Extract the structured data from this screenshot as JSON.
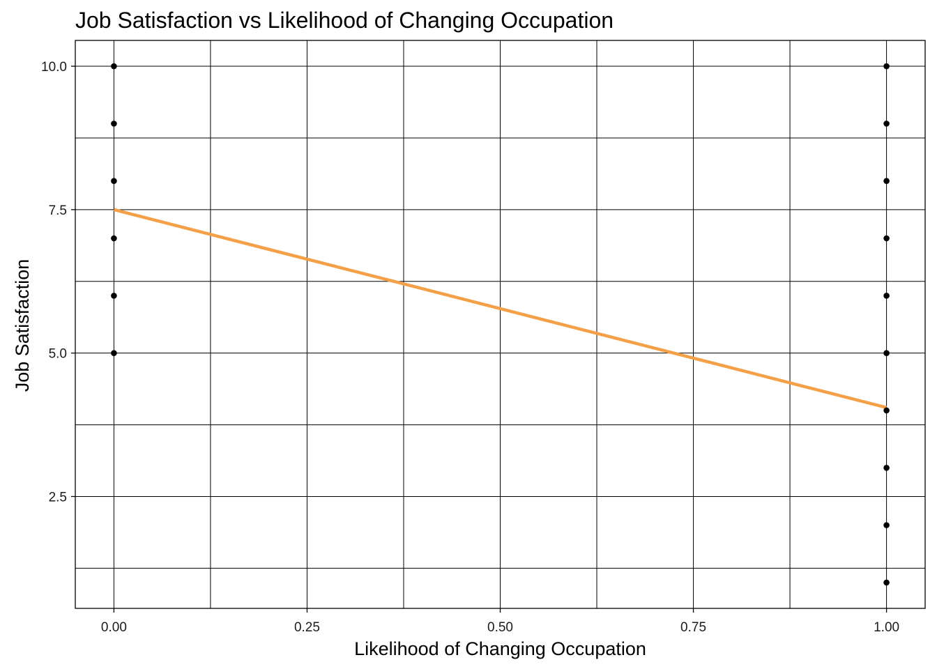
{
  "chart_data": {
    "type": "scatter",
    "title": "Job Satisfaction vs Likelihood of Changing Occupation",
    "xlabel": "Likelihood of Changing Occupation",
    "ylabel": "Job Satisfaction",
    "xlim": [
      -0.05,
      1.05
    ],
    "ylim": [
      0.55,
      10.45
    ],
    "x_ticks": [
      0,
      0.25,
      0.5,
      0.75,
      1
    ],
    "x_tick_labels": [
      "0.00",
      "0.25",
      "0.50",
      "0.75",
      "1.00"
    ],
    "x_minor": [
      0.125,
      0.375,
      0.625,
      0.875
    ],
    "y_ticks": [
      2.5,
      5,
      7.5,
      10
    ],
    "y_tick_labels": [
      "2.5",
      "5.0",
      "7.5",
      "10.0"
    ],
    "y_minor": [
      1.25,
      3.75,
      6.25,
      8.75
    ],
    "grid": true,
    "points": [
      {
        "x": 0,
        "y": 10
      },
      {
        "x": 0,
        "y": 9
      },
      {
        "x": 0,
        "y": 8
      },
      {
        "x": 0,
        "y": 7
      },
      {
        "x": 0,
        "y": 6
      },
      {
        "x": 0,
        "y": 5
      },
      {
        "x": 1,
        "y": 10
      },
      {
        "x": 1,
        "y": 9
      },
      {
        "x": 1,
        "y": 8
      },
      {
        "x": 1,
        "y": 7
      },
      {
        "x": 1,
        "y": 6
      },
      {
        "x": 1,
        "y": 5
      },
      {
        "x": 1,
        "y": 4
      },
      {
        "x": 1,
        "y": 3
      },
      {
        "x": 1,
        "y": 2
      },
      {
        "x": 1,
        "y": 1
      }
    ],
    "trend_line": {
      "x": [
        0,
        1
      ],
      "y": [
        7.5,
        4.05
      ]
    },
    "colors": {
      "points": "#000000",
      "trend_line": "#f4a048",
      "grid": "#000000"
    }
  }
}
